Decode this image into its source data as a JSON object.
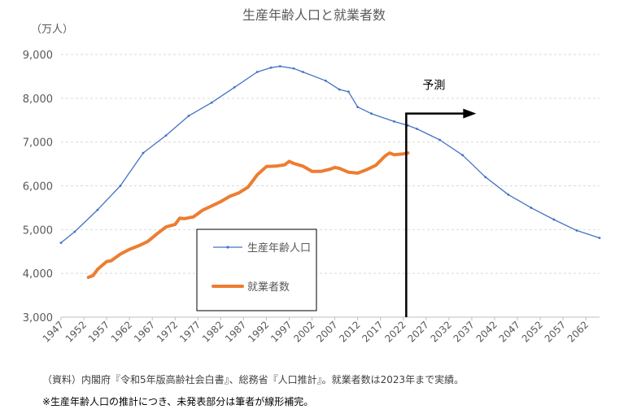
{
  "chart_data": {
    "type": "line",
    "title": "生産年齢人口と就業者数",
    "ylabel": "（万人）",
    "ylim": [
      3000,
      9000
    ],
    "yticks": [
      3000,
      4000,
      5000,
      6000,
      7000,
      8000,
      9000
    ],
    "ytick_labels": [
      "3,000",
      "4,000",
      "5,000",
      "6,000",
      "7,000",
      "8,000",
      "9,000"
    ],
    "xlim": [
      1947,
      2065
    ],
    "xticks": [
      1947,
      1952,
      1957,
      1962,
      1967,
      1972,
      1977,
      1982,
      1987,
      1992,
      1997,
      2002,
      2007,
      2012,
      2017,
      2022,
      2027,
      2032,
      2037,
      2042,
      2047,
      2052,
      2057,
      2062
    ],
    "grid": true,
    "legend_position": "lower-center",
    "forecast": {
      "label": "予測",
      "start_year": 2023
    },
    "series": [
      {
        "name": "生産年齢人口",
        "color": "#4472c4",
        "marker": "dot",
        "x": [
          1947,
          1950,
          1955,
          1960,
          1965,
          1970,
          1975,
          1980,
          1985,
          1990,
          1993,
          1995,
          1998,
          2000,
          2005,
          2008,
          2010,
          2012,
          2015,
          2020,
          2023,
          2025,
          2030,
          2035,
          2040,
          2045,
          2050,
          2055,
          2060,
          2065
        ],
        "values": [
          4700,
          4950,
          5450,
          6000,
          6750,
          7150,
          7600,
          7900,
          8250,
          8600,
          8700,
          8730,
          8680,
          8600,
          8400,
          8200,
          8150,
          7800,
          7650,
          7470,
          7380,
          7300,
          7050,
          6700,
          6200,
          5800,
          5500,
          5230,
          4980,
          4810
        ]
      },
      {
        "name": "就業者数",
        "color": "#ed7d31",
        "marker": "none",
        "x": [
          1953,
          1954,
          1955,
          1957,
          1958,
          1960,
          1962,
          1964,
          1966,
          1968,
          1970,
          1972,
          1973,
          1974,
          1976,
          1978,
          1980,
          1982,
          1984,
          1986,
          1988,
          1990,
          1992,
          1994,
          1996,
          1997,
          1998,
          2000,
          2002,
          2004,
          2006,
          2007,
          2008,
          2010,
          2012,
          2014,
          2016,
          2018,
          2019,
          2020,
          2021,
          2022,
          2023
        ],
        "values": [
          3910,
          3950,
          4090,
          4270,
          4290,
          4440,
          4550,
          4630,
          4730,
          4900,
          5060,
          5120,
          5260,
          5250,
          5290,
          5440,
          5540,
          5640,
          5760,
          5840,
          5970,
          6250,
          6440,
          6450,
          6480,
          6560,
          6510,
          6450,
          6330,
          6330,
          6380,
          6420,
          6400,
          6310,
          6290,
          6370,
          6470,
          6680,
          6750,
          6710,
          6720,
          6730,
          6750
        ]
      }
    ]
  },
  "notes": [
    "（資料）内閣府『令和5年版高齢社会白書』、総務省『人口推計』。就業者数は2023年まで実績。",
    "※生産年齢人口の推計につき、未発表部分は筆者が線形補完。"
  ]
}
